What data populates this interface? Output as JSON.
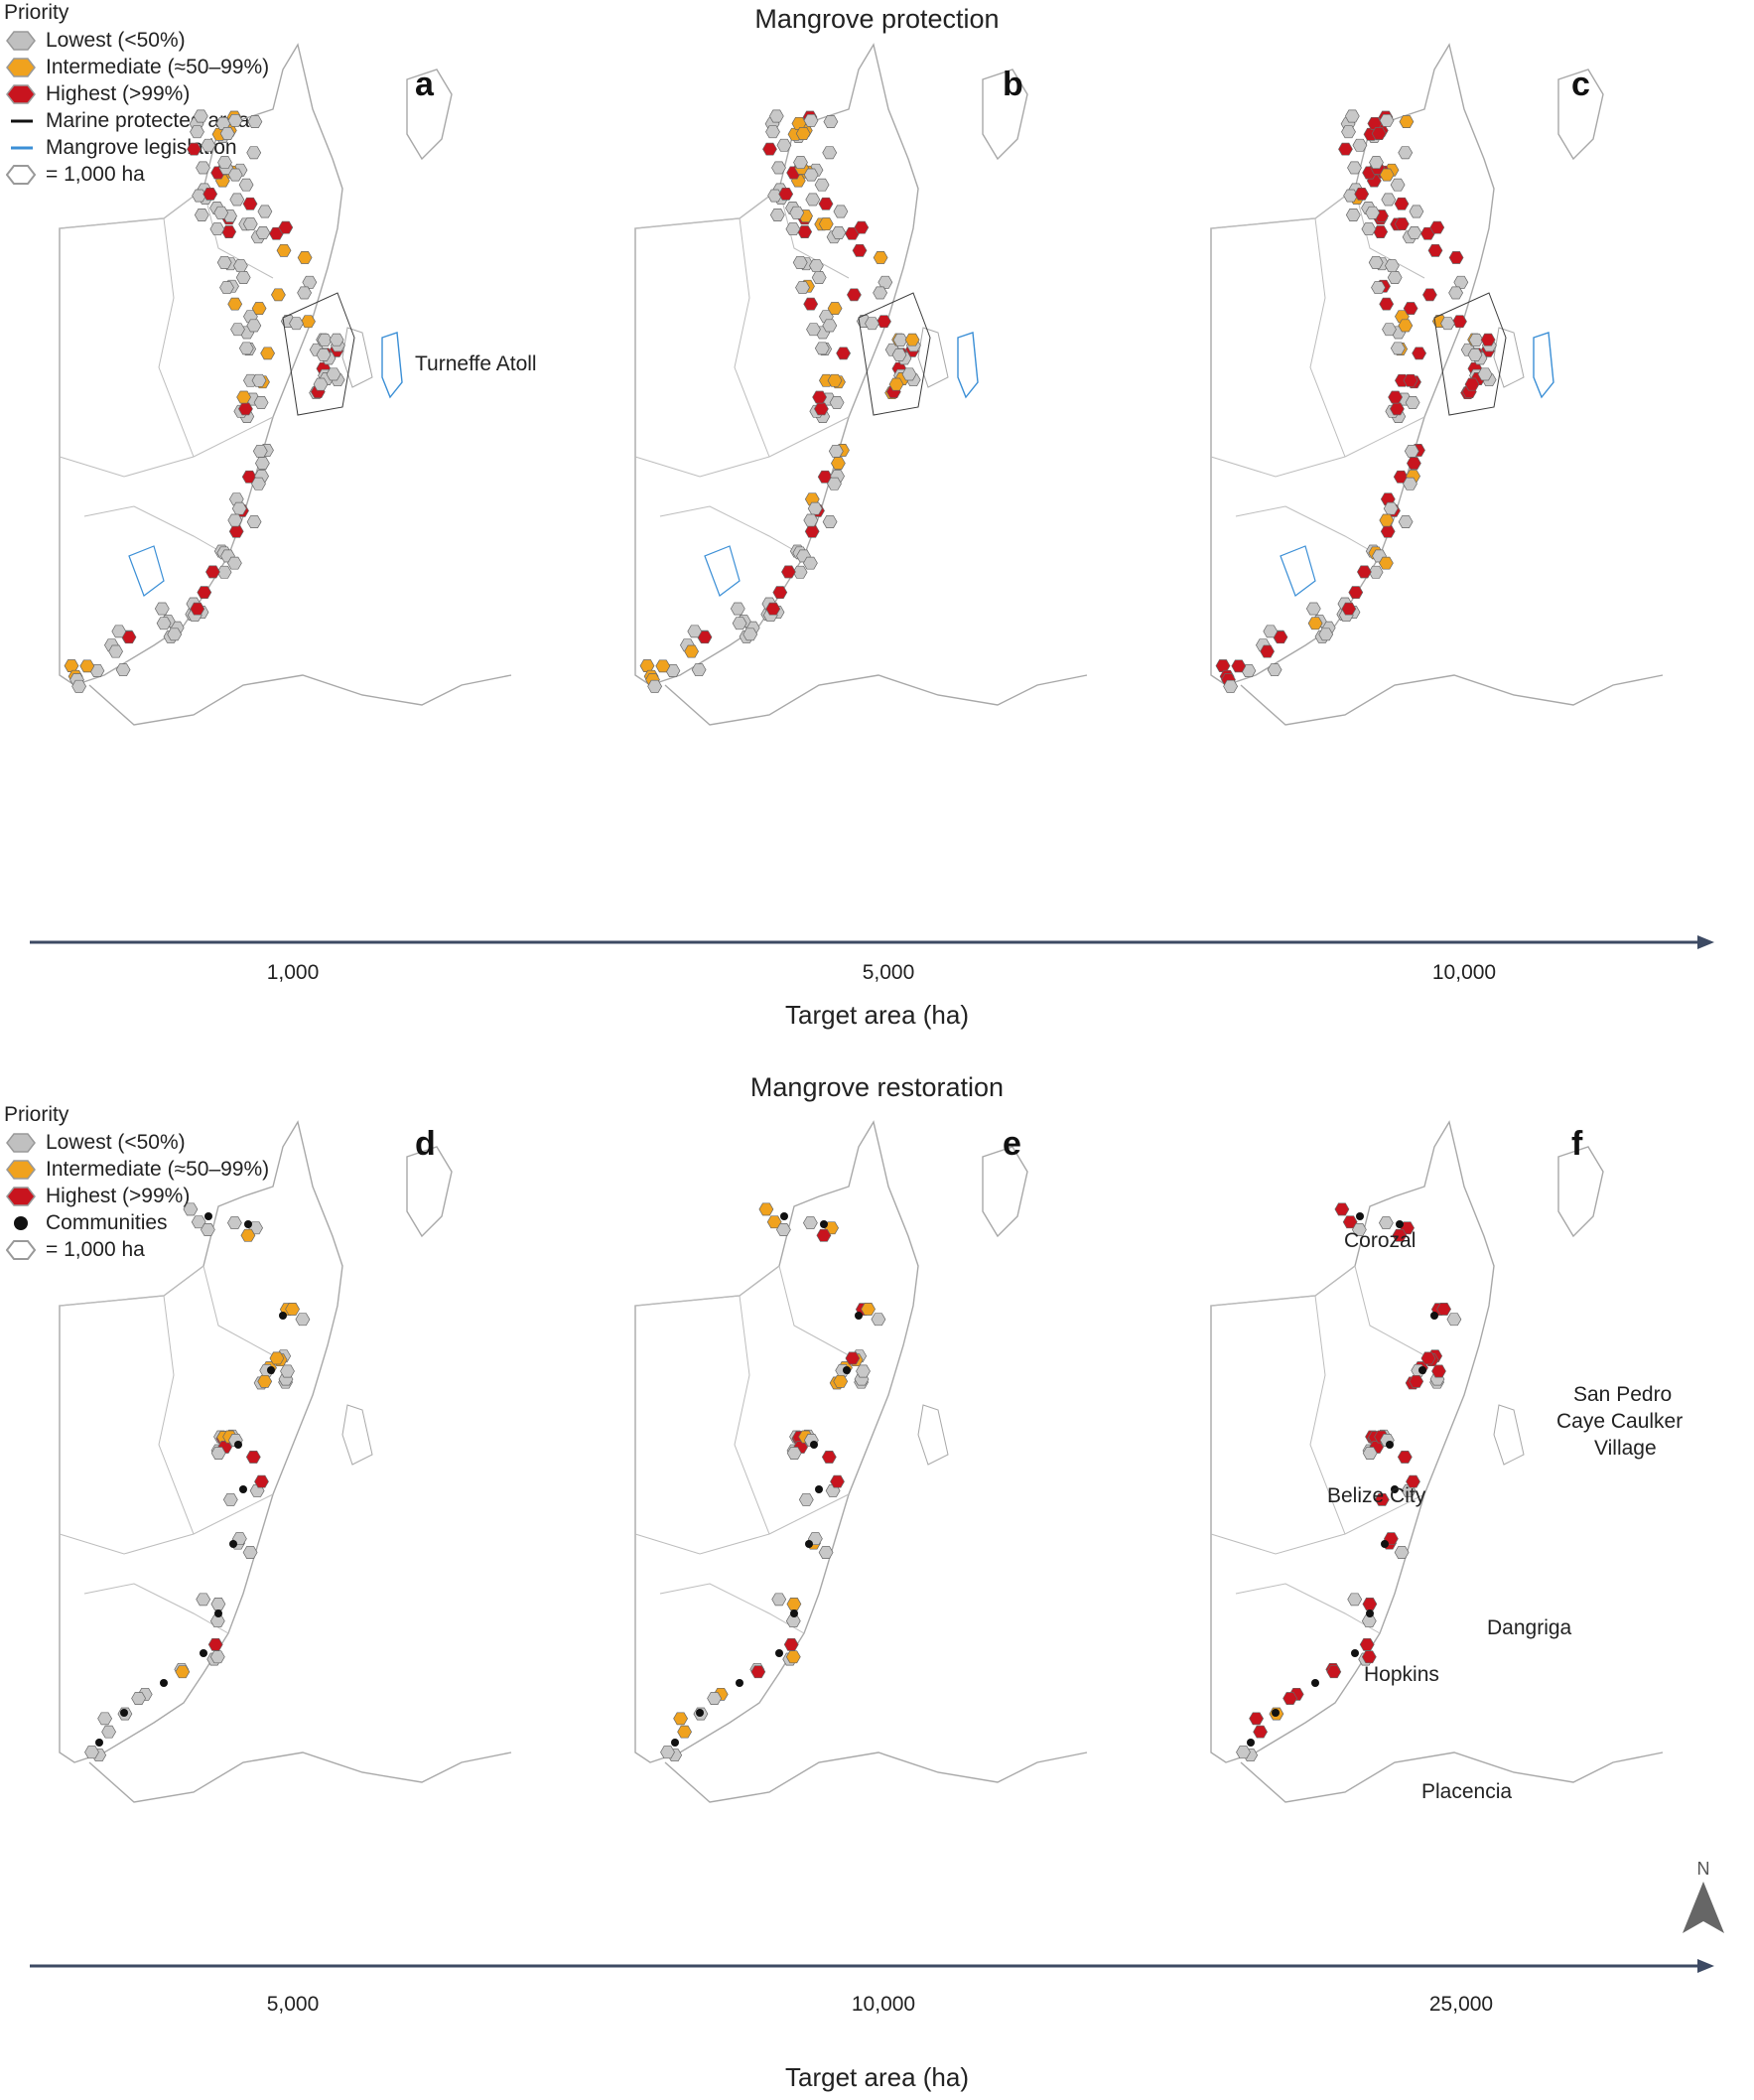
{
  "protection": {
    "title": "Mangrove protection",
    "legend": {
      "header": "Priority",
      "items": [
        {
          "label": "Lowest (<50%)",
          "icon": "grey-hexagon-icon"
        },
        {
          "label": "Intermediate (≈50–99%)",
          "icon": "orange-hexagon-icon"
        },
        {
          "label": "Highest (>99%)",
          "icon": "red-hexagon-icon"
        },
        {
          "label": "Marine protected areas",
          "icon": "black-line-icon"
        },
        {
          "label": "Mangrove legislation",
          "icon": "blue-line-icon"
        },
        {
          "label": "= 1,000 ha",
          "icon": "outline-hexagon-icon"
        }
      ]
    },
    "panels": [
      {
        "letter": "a",
        "target": "1,000"
      },
      {
        "letter": "b",
        "target": "5,000"
      },
      {
        "letter": "c",
        "target": "10,000"
      }
    ],
    "annotation": "Turneffe Atoll",
    "axis_title": "Target area (ha)"
  },
  "restoration": {
    "title": "Mangrove restoration",
    "legend": {
      "header": "Priority",
      "items": [
        {
          "label": "Lowest (<50%)",
          "icon": "grey-hexagon-icon"
        },
        {
          "label": "Intermediate (≈50–99%)",
          "icon": "orange-hexagon-icon"
        },
        {
          "label": "Highest (>99%)",
          "icon": "red-hexagon-icon"
        },
        {
          "label": "Communities",
          "icon": "black-dot-icon"
        },
        {
          "label": "= 1,000 ha",
          "icon": "outline-hexagon-icon"
        }
      ]
    },
    "panels": [
      {
        "letter": "d",
        "target": "5,000"
      },
      {
        "letter": "e",
        "target": "10,000"
      },
      {
        "letter": "f",
        "target": "25,000"
      }
    ],
    "places": [
      "Corozal",
      "San Pedro",
      "Caye Caulker",
      "Village",
      "Belize City",
      "Dangriga",
      "Hopkins",
      "Placencia"
    ],
    "north_label": "N",
    "axis_title": "Target area (ha)"
  },
  "colors": {
    "lowest": "#c8c8c8",
    "intermediate": "#f0a21e",
    "highest": "#c8141e",
    "outline": "#8a8a8a",
    "mpa": "#3a3a3a",
    "legislation": "#3b8fd6",
    "axis": "#3d4a63",
    "coast": "#9a9a9a"
  }
}
